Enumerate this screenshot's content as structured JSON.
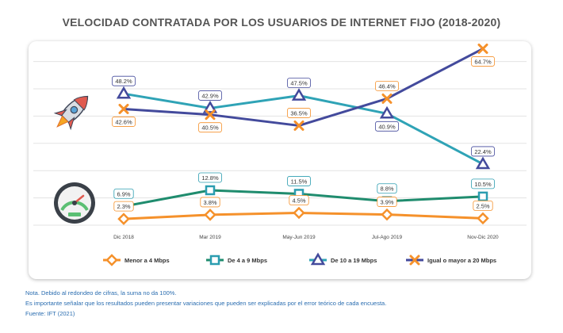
{
  "title": "VELOCIDAD CONTRATADA POR LOS USUARIOS DE INTERNET FIJO (2018-2020)",
  "notes": {
    "line1": "Nota. Debido al redondeo de cifras, la suma no da 100%.",
    "line2": "Es importante señalar que los resultados pueden presentar variaciones que pueden ser explicadas por el error teórico de cada encuesta.",
    "source": "Fuente: IFT (2021)"
  },
  "icons": [
    "rocket-icon",
    "speedometer-icon"
  ],
  "chart_data": {
    "type": "line",
    "title": "VELOCIDAD CONTRATADA POR LOS USUARIOS DE INTERNET FIJO (2018-2020)",
    "categories": [
      "Dic 2018",
      "Mar 2019",
      "May-Jun 2019",
      "Jul-Ago 2019",
      "Nov-Dic 2020"
    ],
    "legend_position": "bottom",
    "grid": true,
    "series": [
      {
        "name": "Menor a 4 Mbps",
        "values": [
          2.3,
          3.8,
          4.5,
          3.9,
          2.5
        ],
        "labels": [
          "2.3%",
          "3.8%",
          "4.5%",
          "3.9%",
          "2.5%"
        ],
        "color": "#f5912b",
        "marker": "diamond",
        "label_position": "above"
      },
      {
        "name": "De 4 a 9 Mbps",
        "values": [
          6.9,
          12.8,
          11.5,
          8.8,
          10.5
        ],
        "labels": [
          "6.9%",
          "12.8%",
          "11.5%",
          "8.8%",
          "10.5%"
        ],
        "color": "#1f8c6e",
        "marker_color": "#2b9db0",
        "marker": "square",
        "label_position": "above"
      },
      {
        "name": "De 10 a 19 Mbps",
        "values": [
          48.2,
          42.9,
          47.5,
          40.9,
          22.4
        ],
        "labels": [
          "48.2%",
          "42.9%",
          "47.5%",
          "40.9%",
          "22.4%"
        ],
        "color": "#2fa3b6",
        "marker_color": "#434a9c",
        "marker": "triangle",
        "label_positions": [
          "above",
          "above",
          "above",
          "below",
          "above"
        ]
      },
      {
        "name": "Igual o mayor a 20 Mbps",
        "values": [
          42.6,
          40.5,
          36.5,
          46.4,
          64.7
        ],
        "labels": [
          "42.6%",
          "40.5%",
          "36.5%",
          "46.4%",
          "64.7%"
        ],
        "color": "#434a9c",
        "marker_color": "#f5912b",
        "marker": "x",
        "label_positions": [
          "below",
          "below",
          "above",
          "above",
          "below"
        ]
      }
    ]
  }
}
